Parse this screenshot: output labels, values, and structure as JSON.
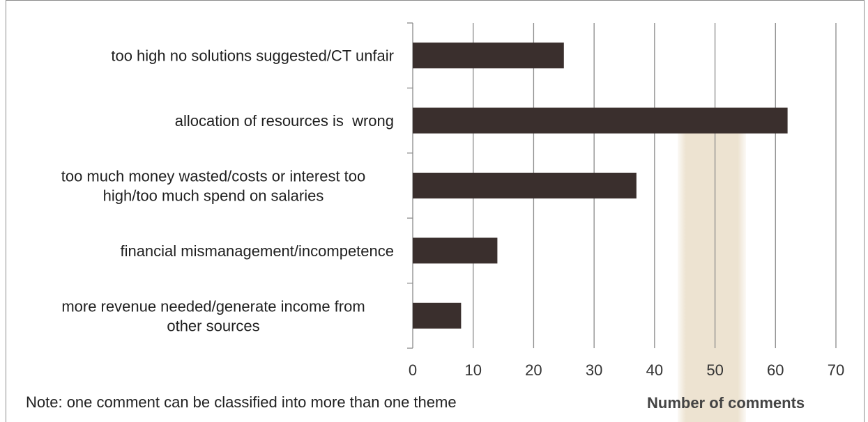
{
  "chart_data": {
    "type": "bar",
    "orientation": "horizontal",
    "categories": [
      "too high no solutions suggested/CT unfair",
      "allocation of resources is  wrong",
      "too much money wasted/costs or interest too high/too much spend on salaries",
      "financial mismanagement/incompetence",
      "more revenue needed/generate income from other sources"
    ],
    "category_lines": [
      [
        "too high no solutions suggested/CT unfair"
      ],
      [
        "allocation of resources is  wrong"
      ],
      [
        "too much money wasted/costs or interest too",
        "high/too much spend on salaries"
      ],
      [
        "financial mismanagement/incompetence"
      ],
      [
        "more revenue needed/generate income from",
        "other sources"
      ]
    ],
    "values": [
      25,
      62,
      37,
      14,
      8
    ],
    "xlabel": "Number of comments",
    "ylabel": "",
    "xlim": [
      0,
      70
    ],
    "xticks": [
      "0",
      "10",
      "20",
      "30",
      "40",
      "50",
      "60",
      "70"
    ],
    "grid": "vertical",
    "bar_color": "#3a2f2d",
    "highlight_color": "#ede3d1"
  },
  "note": "Note: one comment can be classified into more than one theme"
}
